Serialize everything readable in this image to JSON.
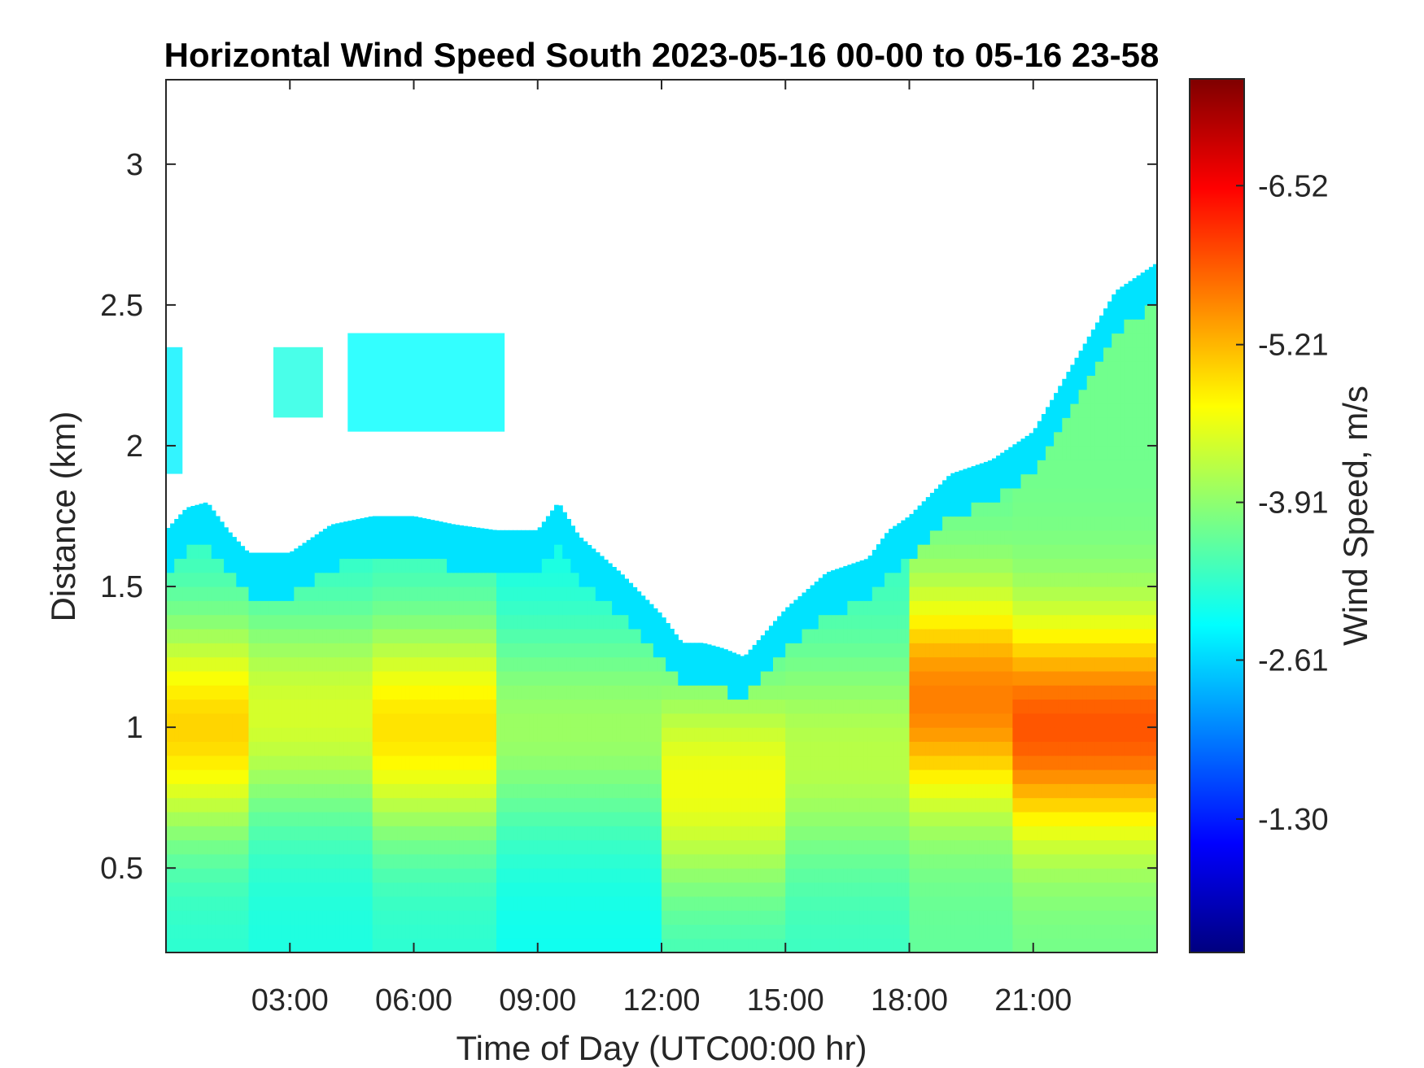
{
  "chart_data": {
    "type": "heatmap",
    "title": "Horizontal Wind Speed South 2023-05-16 00-00 to 05-16 23-58",
    "xlabel": "Time of Day (UTC00:00 hr)",
    "ylabel": "Distance (km)",
    "xlim": [
      0,
      24
    ],
    "ylim": [
      0.2,
      3.3
    ],
    "x_ticks": [
      3,
      6,
      9,
      12,
      15,
      18,
      21
    ],
    "x_tick_labels": [
      "03:00",
      "06:00",
      "09:00",
      "12:00",
      "15:00",
      "18:00",
      "21:00"
    ],
    "y_ticks": [
      0.5,
      1,
      1.5,
      2,
      2.5,
      3
    ],
    "y_tick_labels": [
      "0.5",
      "1",
      "1.5",
      "2",
      "2.5",
      "3"
    ],
    "colorbar": {
      "label": "Wind Speed, m/s",
      "range": [
        -7.4,
        -0.2
      ],
      "ticks": [
        -6.52,
        -5.21,
        -3.91,
        -2.61,
        -1.3
      ],
      "tick_labels": [
        "-6.52",
        "-5.21",
        "-3.91",
        "-2.61",
        "-1.30"
      ],
      "colormap": "jet",
      "colors": [
        "#00007f",
        "#0000ff",
        "#007fff",
        "#00ffff",
        "#7fff7f",
        "#ffff00",
        "#ff7f00",
        "#ff0000",
        "#7f0000"
      ]
    },
    "grid": false,
    "data_top_km_by_hour": {
      "hours": [
        0,
        0.5,
        1,
        1.5,
        2,
        3,
        4,
        5,
        6,
        7,
        8,
        9,
        9.5,
        10,
        11,
        12,
        12.5,
        13,
        13.5,
        14,
        15,
        16,
        17,
        17.5,
        18,
        19,
        20,
        21,
        22,
        23,
        24
      ],
      "top_km": [
        1.7,
        1.78,
        1.8,
        1.7,
        1.62,
        1.62,
        1.72,
        1.75,
        1.75,
        1.72,
        1.7,
        1.7,
        1.8,
        1.68,
        1.55,
        1.4,
        1.3,
        1.3,
        1.28,
        1.25,
        1.42,
        1.55,
        1.6,
        1.7,
        1.75,
        1.9,
        1.95,
        2.05,
        2.3,
        2.55,
        2.65
      ]
    },
    "wind_speed_bands": [
      {
        "hours": [
          0,
          2
        ],
        "km": [
          0.2,
          1.7
        ],
        "peak_km": 1.0,
        "peak_speed": -5.0,
        "base_speed": -3.2
      },
      {
        "hours": [
          2,
          5
        ],
        "km": [
          0.2,
          1.65
        ],
        "peak_km": 1.05,
        "peak_speed": -4.4,
        "base_speed": -3.1
      },
      {
        "hours": [
          5,
          8
        ],
        "km": [
          0.2,
          1.72
        ],
        "peak_km": 1.0,
        "peak_speed": -4.9,
        "base_speed": -3.2
      },
      {
        "hours": [
          8,
          12
        ],
        "km": [
          0.2,
          1.6
        ],
        "peak_km": 1.0,
        "peak_speed": -4.0,
        "base_speed": -3.0
      },
      {
        "hours": [
          12,
          15
        ],
        "km": [
          0.2,
          1.3
        ],
        "peak_km": 0.8,
        "peak_speed": -4.6,
        "base_speed": -3.3
      },
      {
        "hours": [
          15,
          18
        ],
        "km": [
          0.2,
          1.6
        ],
        "peak_km": 0.9,
        "peak_speed": -4.2,
        "base_speed": -3.3
      },
      {
        "hours": [
          18,
          20.5
        ],
        "km": [
          0.2,
          1.95
        ],
        "peak_km": 1.1,
        "peak_speed": -5.6,
        "base_speed": -3.6
      },
      {
        "hours": [
          20.5,
          24
        ],
        "km": [
          0.2,
          2.6
        ],
        "peak_km": 1.0,
        "peak_speed": -5.9,
        "base_speed": -3.7
      }
    ],
    "upper_patches": [
      {
        "hours": [
          0,
          0.4
        ],
        "km": [
          1.9,
          2.35
        ],
        "speed": -2.8
      },
      {
        "hours": [
          2.6,
          3.8
        ],
        "km": [
          2.1,
          2.35
        ],
        "speed": -3.1
      },
      {
        "hours": [
          4.4,
          8.2
        ],
        "km": [
          2.05,
          2.4
        ],
        "speed": -2.9
      }
    ]
  }
}
